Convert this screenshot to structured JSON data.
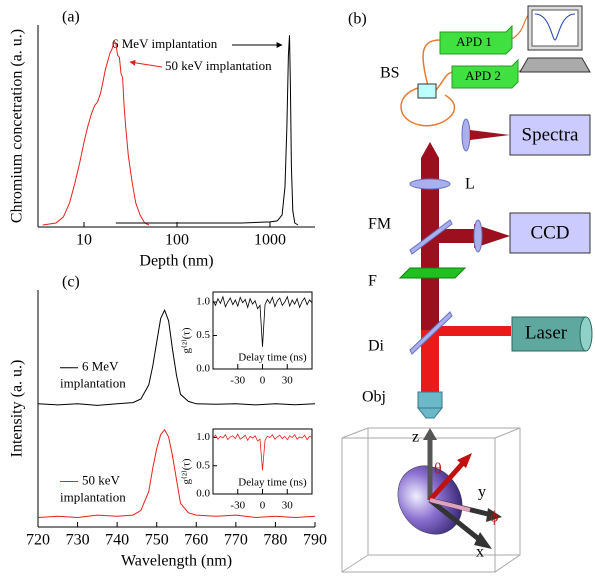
{
  "chart_data": [
    {
      "type": "line",
      "panel_label": "(a)",
      "xlabel": "Depth (nm)",
      "ylabel": "Chromium concetration (a. u.)",
      "xscale": "log",
      "xlim": [
        3.2,
        3050
      ],
      "xticks": [
        10,
        100,
        1000
      ],
      "ylim": [
        0,
        1
      ],
      "series": [
        {
          "name": "50 keV implantation",
          "color": "#e8201a",
          "x": [
            3.6,
            5,
            6,
            7,
            8,
            9,
            10,
            11,
            12,
            13,
            14,
            15,
            16,
            17,
            18,
            19,
            20,
            21,
            22,
            23,
            24,
            25,
            26,
            27,
            28,
            30,
            33,
            36,
            40,
            45,
            50
          ],
          "values": [
            0.01,
            0.02,
            0.05,
            0.12,
            0.22,
            0.32,
            0.42,
            0.5,
            0.56,
            0.6,
            0.62,
            0.66,
            0.72,
            0.78,
            0.82,
            0.86,
            0.88,
            0.92,
            0.91,
            0.85,
            0.84,
            0.76,
            0.74,
            0.6,
            0.5,
            0.35,
            0.22,
            0.12,
            0.06,
            0.02,
            0.01
          ]
        },
        {
          "name": "6 MeV implantation",
          "color": "#000000",
          "x": [
            22,
            100,
            500,
            1000,
            1200,
            1350,
            1450,
            1520,
            1580,
            1620,
            1660,
            1700,
            1760,
            1850,
            2000
          ],
          "values": [
            0.02,
            0.02,
            0.02,
            0.025,
            0.03,
            0.06,
            0.2,
            0.5,
            0.85,
            0.95,
            0.7,
            0.3,
            0.08,
            0.02,
            0.01
          ]
        }
      ]
    },
    {
      "type": "line",
      "panel_label": "(c)",
      "xlabel": "Wavelength (nm)",
      "ylabel": "Intensity (a. u.)",
      "xlim": [
        720,
        790
      ],
      "xticks": [
        720,
        730,
        740,
        750,
        760,
        770,
        780,
        790
      ],
      "ylim": [
        0,
        1
      ],
      "x": [
        720,
        725,
        730,
        735,
        740,
        744,
        746,
        748,
        749,
        750,
        751,
        752,
        753,
        754,
        755,
        756,
        758,
        760,
        765,
        770,
        775,
        780,
        785,
        790
      ],
      "series": [
        {
          "label_lines": [
            "6 MeV",
            "implantation"
          ],
          "color": "#000000",
          "values": [
            0.52,
            0.515,
            0.52,
            0.513,
            0.52,
            0.525,
            0.54,
            0.6,
            0.68,
            0.78,
            0.88,
            0.915,
            0.87,
            0.75,
            0.64,
            0.56,
            0.53,
            0.52,
            0.518,
            0.52,
            0.515,
            0.52,
            0.516,
            0.52
          ]
        },
        {
          "label_lines": [
            "50 keV",
            "implantation"
          ],
          "color": "#e8201a",
          "values": [
            0.04,
            0.045,
            0.04,
            0.05,
            0.045,
            0.05,
            0.07,
            0.15,
            0.25,
            0.33,
            0.39,
            0.41,
            0.38,
            0.3,
            0.2,
            0.1,
            0.06,
            0.05,
            0.045,
            0.05,
            0.04,
            0.045,
            0.04,
            0.045
          ]
        }
      ]
    },
    {
      "type": "line",
      "xlabel": "Delay time (ns)",
      "ylabel": "g⁽²⁾(τ)",
      "xlim": [
        -60,
        60
      ],
      "xticks": [
        -30,
        0,
        30
      ],
      "ylim": [
        0,
        1.15
      ],
      "yticks": [
        {
          "value": 0,
          "label": "0.0"
        },
        {
          "value": 0.5,
          "label": "0.5"
        },
        {
          "value": 1,
          "label": "1.0"
        }
      ],
      "x": [
        -60,
        -57,
        -54,
        -51,
        -48,
        -45,
        -42,
        -39,
        -36,
        -33,
        -30,
        -27,
        -24,
        -21,
        -18,
        -15,
        -12,
        -9,
        -6,
        -3,
        0,
        3,
        6,
        9,
        12,
        15,
        18,
        21,
        24,
        27,
        30,
        33,
        36,
        39,
        42,
        45,
        48,
        51,
        54,
        57,
        60
      ],
      "series": [
        {
          "color": "#000000",
          "values": [
            1.02,
            0.95,
            1.05,
            0.98,
            1.08,
            0.93,
            1.0,
            1.06,
            0.96,
            1.03,
            0.94,
            1.07,
            0.99,
            1.04,
            0.92,
            1.05,
            0.97,
            1.02,
            0.9,
            0.95,
            0.33,
            0.96,
            1.04,
            0.98,
            1.07,
            0.93,
            1.02,
            1.06,
            0.95,
            1.0,
            1.08,
            0.94,
            1.03,
            0.97,
            1.05,
            0.92,
            1.01,
            1.06,
            0.96,
            1.03,
            0.99
          ]
        }
      ]
    },
    {
      "type": "line",
      "xlabel": "Delay time (ns)",
      "ylabel": "g⁽²⁾(τ)",
      "xlim": [
        -60,
        60
      ],
      "xticks": [
        -30,
        0,
        30
      ],
      "ylim": [
        0,
        1.15
      ],
      "yticks": [
        {
          "value": 0,
          "label": "0.0"
        },
        {
          "value": 0.5,
          "label": "0.5"
        },
        {
          "value": 1,
          "label": "1.0"
        }
      ],
      "x": [
        -60,
        -57,
        -54,
        -51,
        -48,
        -45,
        -42,
        -39,
        -36,
        -33,
        -30,
        -27,
        -24,
        -21,
        -18,
        -15,
        -12,
        -9,
        -6,
        -3,
        0,
        3,
        6,
        9,
        12,
        15,
        18,
        21,
        24,
        27,
        30,
        33,
        36,
        39,
        42,
        45,
        48,
        51,
        54,
        57,
        60
      ],
      "series": [
        {
          "color": "#e8201a",
          "values": [
            1.0,
            1.04,
            0.97,
            1.02,
            0.99,
            1.05,
            0.96,
            1.01,
            1.03,
            0.98,
            1.06,
            0.97,
            1.0,
            1.04,
            0.95,
            1.02,
            0.99,
            1.03,
            0.94,
            0.97,
            0.42,
            0.95,
            1.02,
            1.0,
            1.05,
            0.97,
            1.01,
            1.04,
            0.98,
            1.02,
            0.96,
            1.03,
            1.0,
            1.05,
            0.97,
            1.01,
            0.99,
            1.04,
            0.96,
            1.02,
            1.0
          ]
        }
      ]
    }
  ],
  "diagram": {
    "panel_label": "(b)",
    "apd1": "APD 1",
    "apd2": "APD 2",
    "bs": "BS",
    "spectra": "Spectra",
    "lens": "L",
    "fm": "FM",
    "ccd": "CCD",
    "filter": "F",
    "dichroic": "Di",
    "laser": "Laser",
    "objective": "Obj",
    "axis_z": "z",
    "axis_y": "y",
    "axis_x": "x",
    "theta": "θ",
    "phi": "ϕ"
  }
}
